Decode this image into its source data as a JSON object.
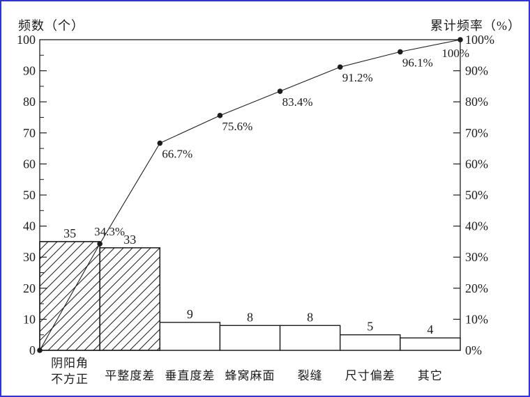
{
  "page": {
    "frame_border_color": "#3232dc",
    "background": "#ffffff"
  },
  "chart_data": {
    "type": "bar",
    "subtype": "pareto",
    "title": "",
    "grid": false,
    "legend": "none",
    "left_axis": {
      "title": "频数（个）",
      "min": 0,
      "max": 100,
      "major_step": 10,
      "minor_step": 5,
      "tick_labels": [
        "0",
        "10",
        "20",
        "30",
        "40",
        "50",
        "60",
        "70",
        "80",
        "90",
        "100"
      ]
    },
    "right_axis": {
      "title": "累计频率（%）",
      "min": 0,
      "max": 100,
      "major_step": 10,
      "tick_labels": [
        "0%",
        "10%",
        "20%",
        "30%",
        "40%",
        "50%",
        "60%",
        "70%",
        "80%",
        "90%",
        "100%"
      ]
    },
    "categories": [
      "阴阳角\n不方正",
      "平整度差",
      "垂直度差",
      "蜂窝麻面",
      "裂缝",
      "尺寸偏差",
      "其它"
    ],
    "series": [
      {
        "name": "频数",
        "type": "bar",
        "values": [
          35,
          33,
          9,
          8,
          8,
          5,
          4
        ],
        "value_labels": [
          "35",
          "33",
          "9",
          "8",
          "8",
          "5",
          "4"
        ],
        "hatched": [
          true,
          true,
          false,
          false,
          false,
          false,
          false
        ],
        "fill": "#ffffff",
        "stroke": "#1c1c1c"
      },
      {
        "name": "累计频率",
        "type": "line",
        "starts_at_origin": true,
        "values": [
          34.3,
          66.7,
          75.6,
          83.4,
          91.2,
          96.1,
          100
        ],
        "point_labels": [
          "34.3%",
          "66.7%",
          "75.6%",
          "83.4%",
          "91.2%",
          "96.1%",
          "100%"
        ],
        "stroke": "#1c1c1c"
      }
    ],
    "colors": {
      "stroke": "#1c1c1c",
      "bar_fill": "#ffffff",
      "frame": "#3232dc"
    }
  }
}
